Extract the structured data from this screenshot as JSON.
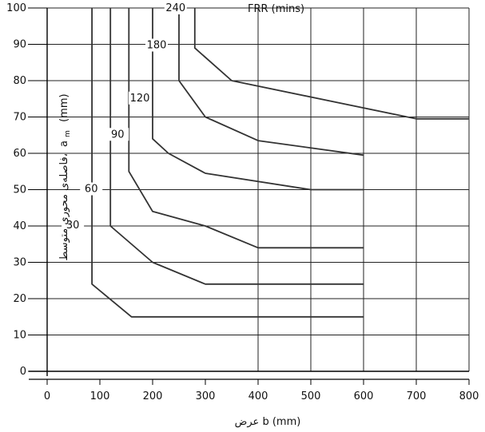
{
  "chart_data": {
    "type": "line",
    "title": "FRR (mins)",
    "xlabel": "عرض b (mm)",
    "ylabel": "فاصله‌ی محوری متوسط، am (mm)",
    "ylabel_parts": {
      "persian": "فاصله‌ی محوری متوسط،",
      "a": "a",
      "sub": "m",
      "unit": "(mm)"
    },
    "xlim": [
      0,
      800
    ],
    "ylim": [
      0,
      100
    ],
    "x_ticks": [
      "0",
      "100",
      "200",
      "300",
      "400",
      "500",
      "600",
      "700",
      "800"
    ],
    "y_ticks": [
      "0",
      "10",
      "20",
      "30",
      "40",
      "50",
      "60",
      "70",
      "80",
      "90",
      "100"
    ],
    "grid": true,
    "series": [
      {
        "name": "30",
        "x": [
          85,
          85,
          160,
          600
        ],
        "y": [
          100,
          24,
          15,
          15
        ]
      },
      {
        "name": "60",
        "x": [
          120,
          120,
          200,
          300,
          600
        ],
        "y": [
          100,
          40,
          30,
          24,
          24
        ]
      },
      {
        "name": "90",
        "x": [
          155,
          155,
          200,
          300,
          400,
          600
        ],
        "y": [
          100,
          55,
          44,
          40,
          34,
          34
        ]
      },
      {
        "name": "120",
        "x": [
          200,
          200,
          230,
          300,
          500,
          600
        ],
        "y": [
          100,
          64,
          60,
          54.5,
          50,
          50
        ]
      },
      {
        "name": "180",
        "x": [
          250,
          250,
          300,
          400,
          600
        ],
        "y": [
          100,
          80,
          70,
          63.5,
          59.5
        ]
      },
      {
        "name": "240",
        "x": [
          280,
          280,
          350,
          700,
          800
        ],
        "y": [
          100,
          89,
          80,
          69.5,
          69.5
        ]
      }
    ]
  }
}
